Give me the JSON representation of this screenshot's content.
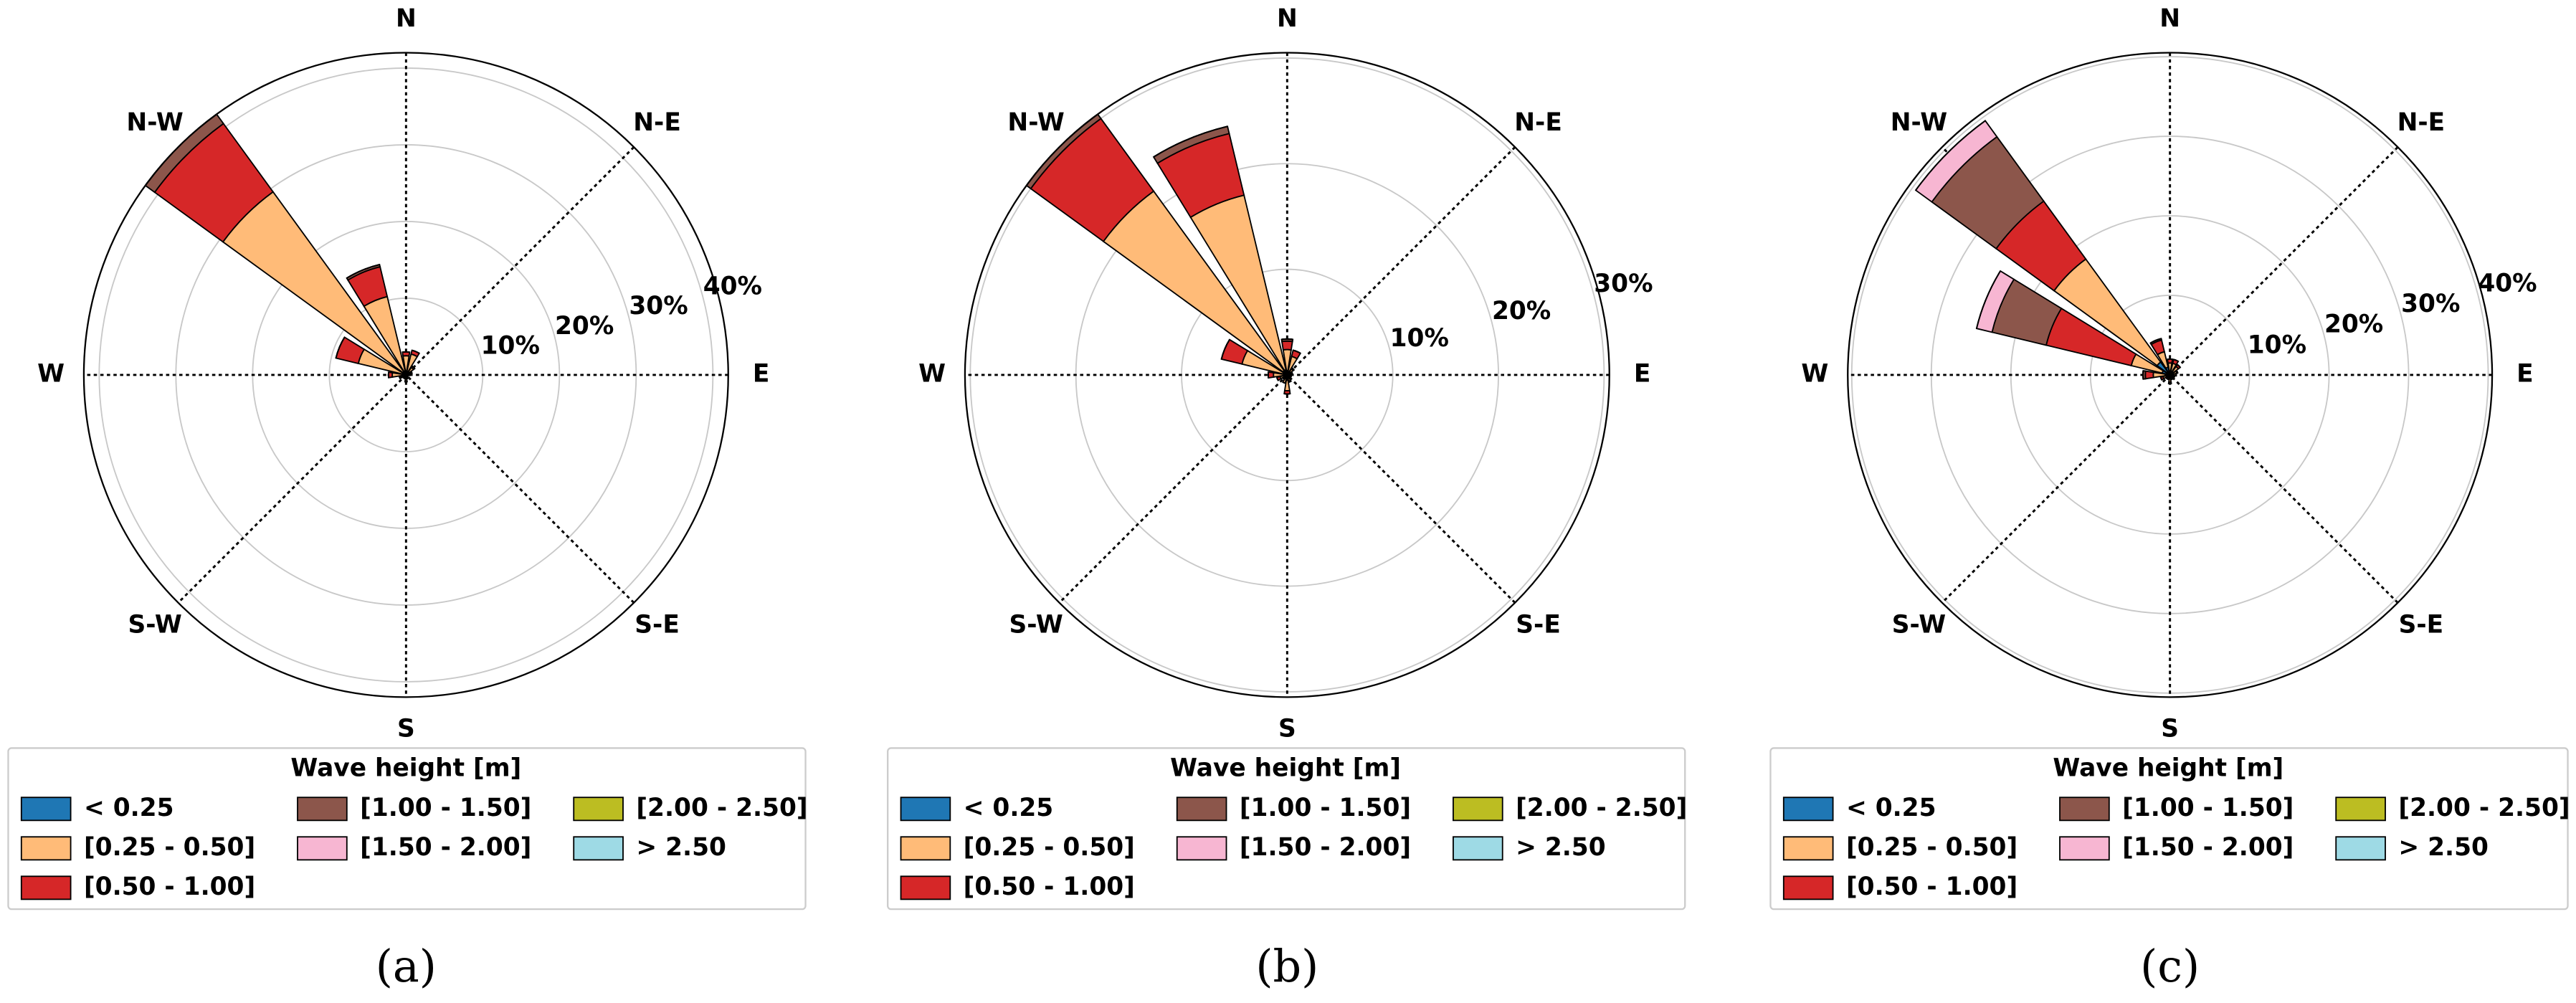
{
  "chart_data": [
    {
      "type": "rose",
      "caption": "(a)",
      "legend_title": "Wave height [m]",
      "categories": [
        "N",
        null,
        "N-E",
        null,
        "E",
        null,
        "S-E",
        null,
        "S",
        null,
        "S-W",
        null,
        "W",
        null,
        "N-W",
        null
      ],
      "rlim": [
        0,
        42
      ],
      "rticks": [
        {
          "value": 10,
          "label": "10%"
        },
        {
          "value": 20,
          "label": "20%"
        },
        {
          "value": 30,
          "label": "30%"
        },
        {
          "value": 40,
          "label": "40%"
        }
      ],
      "series": [
        {
          "name": "< 0.25",
          "color": "#1f77b4",
          "values": [
            0.5,
            0.3,
            0.2,
            0.2,
            0.2,
            0.1,
            0.1,
            0.2,
            0.3,
            0.2,
            0.2,
            0.2,
            0.3,
            0.4,
            0.5,
            0.5
          ]
        },
        {
          "name": "[0.25 - 0.50]",
          "color": "#ffbb78",
          "values": [
            2,
            2.5,
            1,
            0.5,
            0.3,
            0.2,
            0.2,
            0.3,
            0.5,
            0.3,
            0.3,
            0.5,
            1.5,
            6,
            29,
            10
          ]
        },
        {
          "name": "[0.50 - 1.00]",
          "color": "#d62728",
          "values": [
            0.5,
            0.5,
            0.2,
            0.1,
            0,
            0,
            0,
            0,
            0.1,
            0,
            0,
            0.2,
            0.5,
            3,
            11,
            4
          ]
        },
        {
          "name": "[1.00 - 1.50]",
          "color": "#8c564b",
          "values": [
            0,
            0,
            0,
            0,
            0,
            0,
            0,
            0,
            0,
            0,
            0,
            0,
            0,
            0,
            1.5,
            0.3
          ]
        },
        {
          "name": "[1.50 - 2.00]",
          "color": "#f7b6d2",
          "values": [
            0,
            0,
            0,
            0,
            0,
            0,
            0,
            0,
            0,
            0,
            0,
            0,
            0,
            0,
            0,
            0
          ]
        },
        {
          "name": "[2.00 - 2.50]",
          "color": "#bcbd22",
          "values": [
            0,
            0,
            0,
            0,
            0,
            0,
            0,
            0,
            0,
            0,
            0,
            0,
            0,
            0,
            0,
            0
          ]
        },
        {
          "name": "> 2.50",
          "color": "#9edae5",
          "values": [
            0,
            0,
            0,
            0,
            0,
            0,
            0,
            0,
            0,
            0,
            0,
            0,
            0,
            0,
            0,
            0
          ]
        }
      ]
    },
    {
      "type": "rose",
      "caption": "(b)",
      "legend_title": "Wave height [m]",
      "categories": [
        "N",
        null,
        "N-E",
        null,
        "E",
        null,
        "S-E",
        null,
        "S",
        null,
        "S-W",
        null,
        "W",
        null,
        "N-W",
        null
      ],
      "rlim": [
        0,
        30.5
      ],
      "rticks": [
        {
          "value": 10,
          "label": "10%"
        },
        {
          "value": 20,
          "label": "20%"
        },
        {
          "value": 30,
          "label": "30%"
        }
      ],
      "series": [
        {
          "name": "< 0.25",
          "color": "#1f77b4",
          "values": [
            0.4,
            0.3,
            0.2,
            0.2,
            0.2,
            0.2,
            0.2,
            0.3,
            0.5,
            0.3,
            0.2,
            0.2,
            0.3,
            0.4,
            0.5,
            0.5
          ]
        },
        {
          "name": "[0.25 - 0.50]",
          "color": "#ffbb78",
          "values": [
            2,
            1.5,
            0.5,
            0.3,
            0.2,
            0.2,
            0.2,
            0.3,
            1,
            0.5,
            0.3,
            0.5,
            1,
            4,
            21,
            17
          ]
        },
        {
          "name": "[0.50 - 1.00]",
          "color": "#d62728",
          "values": [
            0.8,
            0.6,
            0.1,
            0,
            0,
            0,
            0,
            0.1,
            0.3,
            0,
            0,
            0.3,
            0.5,
            2,
            8.5,
            6
          ]
        },
        {
          "name": "[1.00 - 1.50]",
          "color": "#8c564b",
          "values": [
            0.2,
            0,
            0,
            0,
            0,
            0,
            0,
            0,
            0,
            0,
            0,
            0,
            0,
            0,
            0.5,
            0.7
          ]
        },
        {
          "name": "[1.50 - 2.00]",
          "color": "#f7b6d2",
          "values": [
            0,
            0,
            0,
            0,
            0,
            0,
            0,
            0,
            0,
            0,
            0,
            0,
            0,
            0,
            0,
            0
          ]
        },
        {
          "name": "[2.00 - 2.50]",
          "color": "#bcbd22",
          "values": [
            0,
            0,
            0,
            0,
            0,
            0,
            0,
            0,
            0,
            0,
            0,
            0,
            0,
            0,
            0,
            0
          ]
        },
        {
          "name": "> 2.50",
          "color": "#9edae5",
          "values": [
            0,
            0,
            0,
            0,
            0,
            0,
            0,
            0,
            0,
            0,
            0,
            0,
            0,
            0,
            0,
            0
          ]
        }
      ]
    },
    {
      "type": "rose",
      "caption": "(c)",
      "legend_title": "Wave height [m]",
      "categories": [
        "N",
        null,
        "N-E",
        null,
        "E",
        null,
        "S-E",
        null,
        "S",
        null,
        "S-W",
        null,
        "W",
        null,
        "N-W",
        null
      ],
      "rlim": [
        0,
        40.5
      ],
      "rticks": [
        {
          "value": 10,
          "label": "10%"
        },
        {
          "value": 20,
          "label": "20%"
        },
        {
          "value": 30,
          "label": "30%"
        },
        {
          "value": 40,
          "label": "40%"
        }
      ],
      "series": [
        {
          "name": "< 0.25",
          "color": "#1f77b4",
          "values": [
            0.5,
            0.5,
            0.5,
            0.4,
            0.4,
            0.3,
            0.3,
            0.3,
            0.4,
            0.3,
            0.3,
            0.4,
            0.6,
            1,
            2,
            1
          ]
        },
        {
          "name": "[0.25 - 0.50]",
          "color": "#ffbb78",
          "values": [
            1,
            1,
            0.8,
            0.5,
            0.4,
            0.3,
            0.3,
            0.3,
            0.5,
            0.3,
            0.3,
            0.5,
            1.5,
            4,
            16,
            2
          ]
        },
        {
          "name": "[0.50 - 1.00]",
          "color": "#d62728",
          "values": [
            0.5,
            0.5,
            0.3,
            0.1,
            0,
            0,
            0,
            0,
            0.2,
            0,
            0,
            0.3,
            1,
            11,
            9,
            1.5
          ]
        },
        {
          "name": "[1.00 - 1.50]",
          "color": "#8c564b",
          "values": [
            0,
            0,
            0,
            0,
            0,
            0,
            0,
            0,
            0,
            0,
            0,
            0,
            0.3,
            7,
            10,
            0.2
          ]
        },
        {
          "name": "[1.50 - 2.00]",
          "color": "#f7b6d2",
          "values": [
            0,
            0,
            0,
            0,
            0,
            0,
            0,
            0,
            0,
            0,
            0,
            0,
            0,
            2,
            2.5,
            0
          ]
        },
        {
          "name": "[2.00 - 2.50]",
          "color": "#bcbd22",
          "values": [
            0,
            0,
            0,
            0,
            0,
            0,
            0,
            0,
            0,
            0,
            0,
            0,
            0,
            0,
            0,
            0
          ]
        },
        {
          "name": "> 2.50",
          "color": "#9edae5",
          "values": [
            0,
            0,
            0,
            0,
            0,
            0,
            0,
            0,
            0,
            0,
            0,
            0,
            0,
            0,
            0,
            0
          ]
        }
      ]
    }
  ]
}
